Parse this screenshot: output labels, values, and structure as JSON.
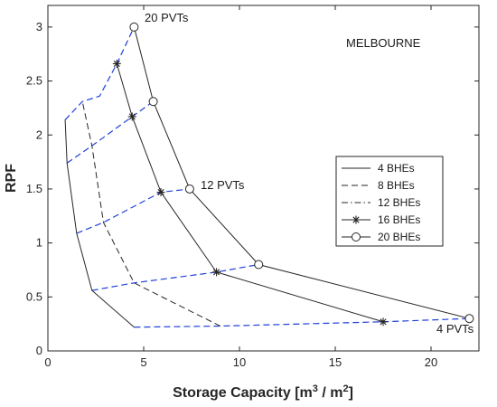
{
  "chart_data": {
    "type": "line",
    "title": "",
    "xlabel": "Storage Capacity [m",
    "xlabel_sup1": "3",
    "xlabel_mid": " / m",
    "xlabel_sup2": "2",
    "xlabel_end": "]",
    "ylabel": "RPF",
    "xlim": [
      0,
      22.5
    ],
    "ylim": [
      0,
      3.2
    ],
    "xticks": [
      0,
      5,
      10,
      15,
      20
    ],
    "yticks": [
      0,
      0.5,
      1,
      1.5,
      2,
      2.5,
      3
    ],
    "grid": false,
    "legend_position": "right",
    "annotations": {
      "city": "MELBOURNE",
      "pv_top": "20 PVTs",
      "pv_mid": "12 PVTs",
      "pv_bottom": "4 PVTs"
    },
    "series": [
      {
        "name": "4 BHEs",
        "style": "solid",
        "marker": "none",
        "color": "#262626",
        "points": [
          [
            4.5,
            0.22
          ],
          [
            2.3,
            0.56
          ],
          [
            1.5,
            1.09
          ],
          [
            1.0,
            1.74
          ],
          [
            0.9,
            2.14
          ]
        ]
      },
      {
        "name": "8 BHEs",
        "style": "dashed",
        "marker": "none",
        "color": "#262626",
        "points": [
          [
            9.0,
            0.23
          ],
          [
            4.5,
            0.63
          ],
          [
            2.9,
            1.19
          ],
          [
            2.3,
            1.9
          ],
          [
            1.8,
            2.31
          ]
        ]
      },
      {
        "name": "12 BHEs",
        "style": "dashdot",
        "marker": "none",
        "color": "#262626",
        "points": []
      },
      {
        "name": "16 BHEs",
        "style": "solid",
        "marker": "star",
        "color": "#262626",
        "points": [
          [
            17.5,
            0.27
          ],
          [
            8.8,
            0.73
          ],
          [
            5.9,
            1.47
          ],
          [
            4.4,
            2.17
          ],
          [
            3.6,
            2.66
          ]
        ]
      },
      {
        "name": "20 BHEs",
        "style": "solid",
        "marker": "circle",
        "color": "#262626",
        "points": [
          [
            22.0,
            0.3
          ],
          [
            11.0,
            0.8
          ],
          [
            7.4,
            1.5
          ],
          [
            5.5,
            2.31
          ],
          [
            4.5,
            3.0
          ]
        ]
      }
    ],
    "pv_lines": {
      "color": "#1f3fd9",
      "style": "dashed",
      "lines": [
        {
          "points": [
            [
              4.5,
              0.22
            ],
            [
              9.0,
              0.23
            ],
            [
              17.5,
              0.27
            ],
            [
              22.0,
              0.3
            ]
          ]
        },
        {
          "points": [
            [
              2.3,
              0.56
            ],
            [
              4.5,
              0.63
            ],
            [
              8.8,
              0.73
            ],
            [
              11.0,
              0.8
            ]
          ]
        },
        {
          "points": [
            [
              1.5,
              1.09
            ],
            [
              2.9,
              1.19
            ],
            [
              5.9,
              1.47
            ],
            [
              7.4,
              1.5
            ]
          ]
        },
        {
          "points": [
            [
              1.0,
              1.74
            ],
            [
              2.3,
              1.9
            ],
            [
              4.4,
              2.17
            ],
            [
              5.5,
              2.31
            ]
          ]
        },
        {
          "points": [
            [
              0.9,
              2.14
            ],
            [
              1.8,
              2.31
            ],
            [
              2.7,
              2.36
            ],
            [
              3.6,
              2.66
            ],
            [
              4.5,
              3.0
            ]
          ]
        }
      ]
    }
  }
}
